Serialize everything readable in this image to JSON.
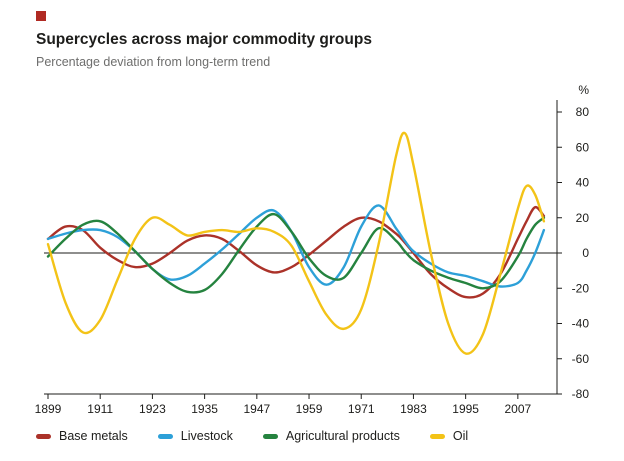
{
  "logo": {
    "color": "#b02a23"
  },
  "chart_data": {
    "type": "line",
    "title": "Supercycles across major commodity groups",
    "subtitle": "Percentage deviation from long-term trend",
    "y_axis_unit": "%",
    "ylim": [
      -80,
      80
    ],
    "xlim": [
      1899,
      2016
    ],
    "yticks": [
      80,
      60,
      40,
      20,
      0,
      -20,
      -40,
      -60,
      -80
    ],
    "xticks": [
      1899,
      1911,
      1923,
      1935,
      1947,
      1959,
      1971,
      1983,
      1995,
      2007
    ],
    "grid": false,
    "zero_line": true,
    "legend_position": "bottom",
    "x": [
      1899,
      1903,
      1907,
      1911,
      1915,
      1919,
      1923,
      1927,
      1931,
      1935,
      1939,
      1943,
      1947,
      1951,
      1955,
      1959,
      1963,
      1967,
      1971,
      1975,
      1979,
      1981,
      1983,
      1987,
      1991,
      1995,
      1999,
      2003,
      2007,
      2009,
      2011,
      2013
    ],
    "series": [
      {
        "name": "Base metals",
        "color": "#ab3229",
        "values": [
          8,
          15,
          13,
          3,
          -4,
          -8,
          -6,
          0,
          7,
          10,
          8,
          1,
          -7,
          -11,
          -8,
          -1,
          7,
          15,
          20,
          18,
          11,
          6,
          0,
          -12,
          -20,
          -25,
          -23,
          -12,
          8,
          18,
          26,
          21
        ]
      },
      {
        "name": "Livestock",
        "color": "#2da0d8",
        "values": [
          8,
          11,
          13,
          13,
          9,
          1,
          -9,
          -15,
          -13,
          -6,
          2,
          11,
          20,
          24,
          12,
          -8,
          -18,
          -8,
          15,
          27,
          14,
          7,
          1,
          -6,
          -11,
          -13,
          -16,
          -19,
          -17,
          -10,
          0,
          13
        ]
      },
      {
        "name": "Agricultural products",
        "color": "#25833f",
        "values": [
          -2,
          8,
          16,
          18,
          11,
          1,
          -9,
          -17,
          -22,
          -21,
          -12,
          2,
          15,
          22,
          12,
          -3,
          -13,
          -14,
          0,
          14,
          7,
          1,
          -4,
          -10,
          -14,
          -17,
          -20,
          -16,
          -2,
          8,
          16,
          20
        ]
      },
      {
        "name": "Oil",
        "color": "#f3c317",
        "values": [
          5,
          -28,
          -45,
          -38,
          -15,
          8,
          20,
          16,
          10,
          12,
          13,
          12,
          14,
          12,
          4,
          -16,
          -35,
          -43,
          -32,
          5,
          55,
          68,
          50,
          0,
          -40,
          -57,
          -46,
          -12,
          25,
          38,
          33,
          18
        ]
      }
    ],
    "axis_color": "#1d1d1b"
  }
}
